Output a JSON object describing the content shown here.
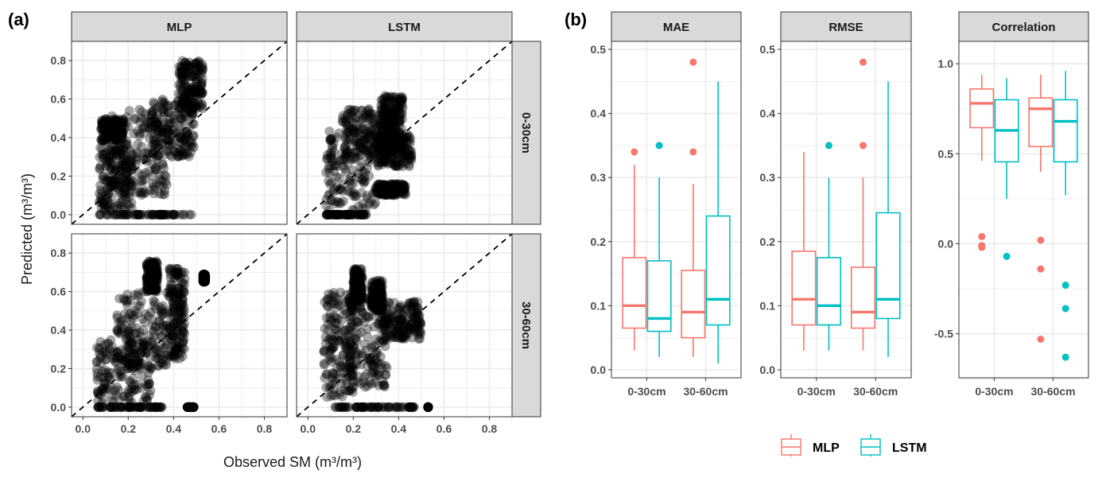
{
  "panel_labels": {
    "a": "(a)",
    "b": "(b)"
  },
  "colors": {
    "MLP": "#F8766D",
    "LSTM": "#00BFC4",
    "strip_bg": "#D9D9D9",
    "grid": "#EBEBEB",
    "points": "#000000"
  },
  "chart_data": [
    {
      "id": "a",
      "type": "scatter",
      "title": "",
      "xlabel": "Observed SM (m³/m³)",
      "ylabel": "Predicted (m³/m³)",
      "xlim": [
        -0.05,
        0.9
      ],
      "ylim": [
        -0.05,
        0.9
      ],
      "xticks": [
        "0.0",
        "0.2",
        "0.4",
        "0.6",
        "0.8"
      ],
      "yticks": [
        "0.0",
        "0.2",
        "0.4",
        "0.6",
        "0.8"
      ],
      "grid": true,
      "reference_line": "1:1 dashed",
      "facet_columns": [
        "MLP",
        "LSTM"
      ],
      "facet_rows": [
        "0-30cm",
        "30-60cm"
      ],
      "panels": [
        {
          "model": "MLP",
          "depth": "0-30cm",
          "clusters": [
            {
              "x": [
                0.07,
                0.48
              ],
              "y": [
                0.0,
                0.0
              ],
              "note": "zero-prediction band"
            },
            {
              "x": [
                0.07,
                0.22
              ],
              "y": [
                0.02,
                0.35
              ]
            },
            {
              "x": [
                0.12,
                0.38
              ],
              "y": [
                0.1,
                0.55
              ]
            },
            {
              "x": [
                0.08,
                0.18
              ],
              "y": [
                0.38,
                0.5
              ]
            },
            {
              "x": [
                0.3,
                0.49
              ],
              "y": [
                0.3,
                0.6
              ]
            },
            {
              "x": [
                0.42,
                0.53
              ],
              "y": [
                0.55,
                0.8
              ]
            }
          ]
        },
        {
          "model": "LSTM",
          "depth": "0-30cm",
          "clusters": [
            {
              "x": [
                0.08,
                0.26
              ],
              "y": [
                0.0,
                0.0
              ],
              "note": "zero-prediction band"
            },
            {
              "x": [
                0.08,
                0.3
              ],
              "y": [
                0.02,
                0.45
              ]
            },
            {
              "x": [
                0.15,
                0.38
              ],
              "y": [
                0.3,
                0.55
              ]
            },
            {
              "x": [
                0.32,
                0.42
              ],
              "y": [
                0.35,
                0.62
              ]
            },
            {
              "x": [
                0.3,
                0.46
              ],
              "y": [
                0.25,
                0.42
              ]
            },
            {
              "x": [
                0.3,
                0.43
              ],
              "y": [
                0.1,
                0.16
              ]
            }
          ]
        },
        {
          "model": "MLP",
          "depth": "30-60cm",
          "clusters": [
            {
              "x": [
                0.05,
                0.35
              ],
              "y": [
                0.0,
                0.0
              ],
              "note": "zero-prediction band"
            },
            {
              "x": [
                0.46,
                0.49
              ],
              "y": [
                0.0,
                0.0
              ]
            },
            {
              "x": [
                0.06,
                0.3
              ],
              "y": [
                0.02,
                0.35
              ]
            },
            {
              "x": [
                0.15,
                0.38
              ],
              "y": [
                0.2,
                0.6
              ]
            },
            {
              "x": [
                0.28,
                0.33
              ],
              "y": [
                0.6,
                0.76
              ]
            },
            {
              "x": [
                0.38,
                0.45
              ],
              "y": [
                0.25,
                0.72
              ]
            },
            {
              "x": [
                0.53,
                0.54
              ],
              "y": [
                0.65,
                0.69
              ]
            }
          ]
        },
        {
          "model": "LSTM",
          "depth": "30-60cm",
          "clusters": [
            {
              "x": [
                0.12,
                0.47
              ],
              "y": [
                0.0,
                0.0
              ],
              "note": "zero-prediction band"
            },
            {
              "x": [
                0.53,
                0.53
              ],
              "y": [
                0.0,
                0.0
              ]
            },
            {
              "x": [
                0.07,
                0.2
              ],
              "y": [
                0.05,
                0.6
              ]
            },
            {
              "x": [
                0.18,
                0.35
              ],
              "y": [
                0.1,
                0.58
              ]
            },
            {
              "x": [
                0.2,
                0.24
              ],
              "y": [
                0.55,
                0.72
              ]
            },
            {
              "x": [
                0.28,
                0.33
              ],
              "y": [
                0.5,
                0.66
              ]
            },
            {
              "x": [
                0.32,
                0.5
              ],
              "y": [
                0.35,
                0.55
              ]
            }
          ]
        }
      ]
    },
    {
      "id": "b",
      "type": "box",
      "categories": [
        "0-30cm",
        "30-60cm"
      ],
      "legend": {
        "placement": "bottom",
        "entries": [
          "MLP",
          "LSTM"
        ]
      },
      "grid": true,
      "facets": [
        {
          "title": "MAE",
          "ylim": [
            0.0,
            0.5
          ],
          "yticks": [
            "0.0",
            "0.1",
            "0.2",
            "0.3",
            "0.4",
            "0.5"
          ],
          "ytick_values": [
            0,
            0.1,
            0.2,
            0.3,
            0.4,
            0.5
          ],
          "series": [
            {
              "name": "MLP",
              "boxes": [
                {
                  "category": "0-30cm",
                  "min": 0.03,
                  "q1": 0.065,
                  "median": 0.1,
                  "q3": 0.175,
                  "max": 0.32,
                  "outliers": [
                    0.34
                  ]
                },
                {
                  "category": "30-60cm",
                  "min": 0.02,
                  "q1": 0.05,
                  "median": 0.09,
                  "q3": 0.155,
                  "max": 0.29,
                  "outliers": [
                    0.34,
                    0.48
                  ]
                }
              ]
            },
            {
              "name": "LSTM",
              "boxes": [
                {
                  "category": "0-30cm",
                  "min": 0.02,
                  "q1": 0.06,
                  "median": 0.08,
                  "q3": 0.17,
                  "max": 0.3,
                  "outliers": [
                    0.35
                  ]
                },
                {
                  "category": "30-60cm",
                  "min": 0.01,
                  "q1": 0.07,
                  "median": 0.11,
                  "q3": 0.24,
                  "max": 0.45,
                  "outliers": []
                }
              ]
            }
          ]
        },
        {
          "title": "RMSE",
          "ylim": [
            0.0,
            0.5
          ],
          "yticks": [
            "0.0",
            "0.1",
            "0.2",
            "0.3",
            "0.4",
            "0.5"
          ],
          "ytick_values": [
            0,
            0.1,
            0.2,
            0.3,
            0.4,
            0.5
          ],
          "series": [
            {
              "name": "MLP",
              "boxes": [
                {
                  "category": "0-30cm",
                  "min": 0.03,
                  "q1": 0.07,
                  "median": 0.11,
                  "q3": 0.185,
                  "max": 0.34,
                  "outliers": []
                },
                {
                  "category": "30-60cm",
                  "min": 0.03,
                  "q1": 0.065,
                  "median": 0.09,
                  "q3": 0.16,
                  "max": 0.3,
                  "outliers": [
                    0.35,
                    0.48
                  ]
                }
              ]
            },
            {
              "name": "LSTM",
              "boxes": [
                {
                  "category": "0-30cm",
                  "min": 0.03,
                  "q1": 0.07,
                  "median": 0.1,
                  "q3": 0.175,
                  "max": 0.3,
                  "outliers": [
                    0.35
                  ]
                },
                {
                  "category": "30-60cm",
                  "min": 0.02,
                  "q1": 0.08,
                  "median": 0.11,
                  "q3": 0.245,
                  "max": 0.45,
                  "outliers": []
                }
              ]
            }
          ]
        },
        {
          "title": "Correlation",
          "ylim": [
            -0.7,
            1.08
          ],
          "yticks": [
            "-0.5",
            "0.0",
            "0.5",
            "1.0"
          ],
          "ytick_values": [
            -0.5,
            0,
            0.5,
            1.0
          ],
          "series": [
            {
              "name": "MLP",
              "boxes": [
                {
                  "category": "0-30cm",
                  "min": 0.46,
                  "q1": 0.645,
                  "median": 0.78,
                  "q3": 0.86,
                  "max": 0.94,
                  "outliers": [
                    0.04,
                    -0.01,
                    -0.02
                  ]
                },
                {
                  "category": "30-60cm",
                  "min": 0.4,
                  "q1": 0.54,
                  "median": 0.75,
                  "q3": 0.81,
                  "max": 0.94,
                  "outliers": [
                    0.02,
                    -0.14,
                    -0.53
                  ]
                }
              ]
            },
            {
              "name": "LSTM",
              "boxes": [
                {
                  "category": "0-30cm",
                  "min": 0.25,
                  "q1": 0.455,
                  "median": 0.63,
                  "q3": 0.8,
                  "max": 0.92,
                  "outliers": [
                    -0.07
                  ]
                },
                {
                  "category": "30-60cm",
                  "min": 0.27,
                  "q1": 0.455,
                  "median": 0.68,
                  "q3": 0.8,
                  "max": 0.96,
                  "outliers": [
                    -0.23,
                    -0.36,
                    -0.63
                  ]
                }
              ]
            }
          ]
        }
      ]
    }
  ]
}
